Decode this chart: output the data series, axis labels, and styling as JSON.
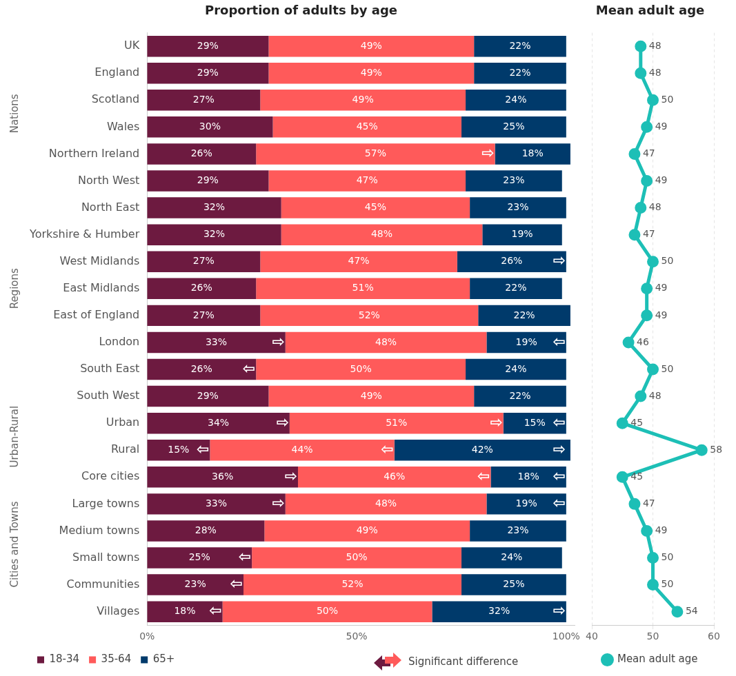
{
  "chart_data": [
    {
      "type": "bar",
      "orientation": "horizontal",
      "stacked": true,
      "title": "Proportion of adults by age",
      "categories": [
        "UK",
        "England",
        "Scotland",
        "Wales",
        "Northern Ireland",
        "North West",
        "North East",
        "Yorkshire & Humber",
        "West Midlands",
        "East Midlands",
        "East of England",
        "London",
        "South East",
        "South West",
        "Urban",
        "Rural",
        "Core cities",
        "Large towns",
        "Medium towns",
        "Small towns",
        "Communities",
        "Villages"
      ],
      "series": [
        {
          "name": "18-34",
          "color": "#6d1a40",
          "values": [
            29,
            29,
            27,
            30,
            26,
            29,
            32,
            32,
            27,
            26,
            27,
            33,
            26,
            29,
            34,
            15,
            36,
            33,
            28,
            25,
            23,
            18
          ],
          "value_labels": [
            "29%",
            "29%",
            "27%",
            "30%",
            "26%",
            "29%",
            "32%",
            "32%",
            "27%",
            "26%",
            "27%",
            "33%",
            "26%",
            "29%",
            "34%",
            "15%",
            "36%",
            "33%",
            "28%",
            "25%",
            "23%",
            "18%"
          ]
        },
        {
          "name": "35-64",
          "color": "#ff5a5a",
          "values": [
            49,
            49,
            49,
            45,
            57,
            47,
            45,
            48,
            47,
            51,
            52,
            48,
            50,
            49,
            51,
            44,
            46,
            48,
            49,
            50,
            52,
            50
          ],
          "value_labels": [
            "49%",
            "49%",
            "49%",
            "45%",
            "57%",
            "47%",
            "45%",
            "48%",
            "47%",
            "51%",
            "52%",
            "48%",
            "50%",
            "49%",
            "51%",
            "44%",
            "46%",
            "48%",
            "49%",
            "50%",
            "52%",
            "50%"
          ]
        },
        {
          "name": "65+",
          "color": "#003a6b",
          "values": [
            22,
            22,
            24,
            25,
            18,
            23,
            23,
            19,
            26,
            22,
            22,
            19,
            24,
            22,
            15,
            42,
            18,
            19,
            23,
            24,
            25,
            32
          ],
          "value_labels": [
            "22%",
            "22%",
            "24%",
            "25%",
            "18%",
            "23%",
            "23%",
            "19%",
            "26%",
            "22%",
            "22%",
            "19%",
            "24%",
            "22%",
            "15%",
            "42%",
            "18%",
            "19%",
            "23%",
            "24%",
            "25%",
            "32%"
          ]
        }
      ],
      "xlim": [
        0,
        102
      ],
      "xticks": [
        {
          "value": 0,
          "label": "0%"
        },
        {
          "value": 50,
          "label": "50%"
        },
        {
          "value": 100,
          "label": "100%"
        }
      ],
      "grid": false,
      "legend": "bottom",
      "annotations": [
        "Significant difference",
        "Nations",
        "Regions",
        "Urban-Rural",
        "Cities and Towns",
        {
          "text": "⇨",
          "x": 83,
          "y": "Northern Ireland"
        },
        {
          "text": "⇨",
          "x": 100,
          "y": "West Midlands"
        },
        {
          "text": "⇨",
          "x": 33,
          "y": "London"
        },
        {
          "text": "⇦",
          "x": 100,
          "y": "London"
        },
        {
          "text": "⇦",
          "x": 26,
          "y": "South East"
        },
        {
          "text": "⇨",
          "x": 34,
          "y": "Urban"
        },
        {
          "text": "⇨",
          "x": 85,
          "y": "Urban"
        },
        {
          "text": "⇦",
          "x": 100,
          "y": "Urban"
        },
        {
          "text": "⇦",
          "x": 15,
          "y": "Rural"
        },
        {
          "text": "⇦",
          "x": 59,
          "y": "Rural"
        },
        {
          "text": "⇨",
          "x": 100,
          "y": "Rural"
        },
        {
          "text": "⇨",
          "x": 36,
          "y": "Core cities"
        },
        {
          "text": "⇦",
          "x": 82,
          "y": "Core cities"
        },
        {
          "text": "⇦",
          "x": 100,
          "y": "Core cities"
        },
        {
          "text": "⇨",
          "x": 33,
          "y": "Large towns"
        },
        {
          "text": "⇦",
          "x": 100,
          "y": "Large towns"
        },
        {
          "text": "⇦",
          "x": 25,
          "y": "Small towns"
        },
        {
          "text": "⇦",
          "x": 23,
          "y": "Communities"
        },
        {
          "text": "⇦",
          "x": 18,
          "y": "Villages"
        },
        {
          "text": "⇨",
          "x": 100,
          "y": "Villages"
        }
      ]
    },
    {
      "type": "line",
      "orientation": "horizontal",
      "title": "Mean adult age",
      "categories": [
        "UK",
        "England",
        "Scotland",
        "Wales",
        "Northern Ireland",
        "North West",
        "North East",
        "Yorkshire & Humber",
        "West Midlands",
        "East Midlands",
        "East of England",
        "London",
        "South East",
        "South West",
        "Urban",
        "Rural",
        "Core cities",
        "Large towns",
        "Medium towns",
        "Small towns",
        "Communities",
        "Villages"
      ],
      "series": [
        {
          "name": "Mean adult age",
          "color": "#1dbfb6",
          "values": [
            48,
            48,
            50,
            49,
            47,
            49,
            48,
            47,
            50,
            49,
            49,
            46,
            50,
            48,
            45,
            58,
            45,
            47,
            49,
            50,
            50,
            54
          ]
        }
      ],
      "xlim": [
        40,
        60
      ],
      "xticks": [
        40,
        50,
        60
      ],
      "grid": "x",
      "tick_labels": "x",
      "legend": "bottom",
      "marker": "circle",
      "line_style": "solid",
      "data_labels": true
    }
  ]
}
